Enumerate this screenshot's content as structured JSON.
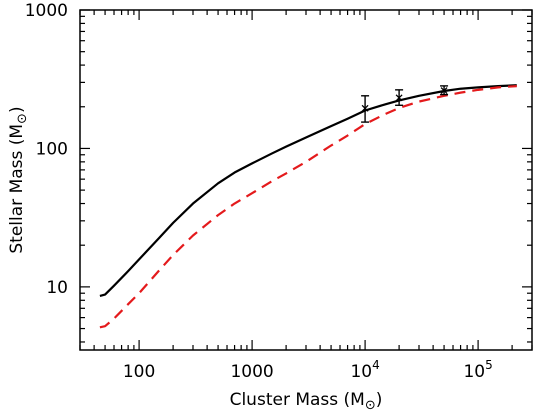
{
  "chart_data": {
    "type": "line",
    "xlabel": "Cluster Mass (M⊙)",
    "ylabel": "Stellar Mass (M⊙)",
    "xscale": "log",
    "yscale": "log",
    "xlim": [
      30,
      300000
    ],
    "ylim": [
      3.5,
      1000
    ],
    "x_ticks": [
      {
        "value": 100,
        "label": "100"
      },
      {
        "value": 1000,
        "label": "1000"
      },
      {
        "value": 10000,
        "label": "10",
        "exp": "4"
      },
      {
        "value": 100000,
        "label": "10",
        "exp": "5"
      }
    ],
    "y_ticks": [
      {
        "value": 10,
        "label": "10"
      },
      {
        "value": 100,
        "label": "100"
      },
      {
        "value": 1000,
        "label": "1000"
      }
    ],
    "series": [
      {
        "style": "solid",
        "color": "#000000",
        "x": [
          45,
          50,
          60,
          80,
          100,
          150,
          200,
          300,
          500,
          700,
          1000,
          1500,
          2000,
          3000,
          5000,
          7000,
          10000,
          15000,
          20000,
          30000,
          50000,
          70000,
          100000,
          150000,
          220000
        ],
        "y": [
          8.6,
          8.8,
          10.2,
          13.0,
          15.8,
          22.5,
          29.0,
          40.0,
          56.0,
          67.0,
          78.0,
          92.0,
          103.0,
          120.0,
          145.0,
          164.0,
          188.0,
          208.0,
          222.0,
          240.0,
          260.0,
          270.0,
          276.0,
          282.0,
          286.0
        ]
      },
      {
        "style": "dashed",
        "color": "#e41a1c",
        "x": [
          45,
          50,
          60,
          80,
          100,
          150,
          200,
          300,
          500,
          700,
          1000,
          1500,
          2000,
          3000,
          5000,
          7000,
          10000,
          15000,
          20000,
          30000,
          50000,
          70000,
          100000,
          150000,
          220000
        ],
        "y": [
          5.1,
          5.2,
          5.9,
          7.5,
          9.0,
          13.1,
          17.0,
          23.5,
          33.0,
          40.0,
          47.5,
          58.0,
          66.0,
          80.0,
          105.0,
          124.0,
          150.0,
          177.0,
          196.0,
          218.0,
          240.0,
          253.0,
          265.0,
          276.0,
          282.0
        ]
      }
    ],
    "error_bars": [
      {
        "x": 10000,
        "y": 195,
        "low": 155,
        "high": 240
      },
      {
        "x": 20000,
        "y": 232,
        "low": 205,
        "high": 265
      },
      {
        "x": 50000,
        "y": 262,
        "low": 245,
        "high": 283
      }
    ]
  }
}
